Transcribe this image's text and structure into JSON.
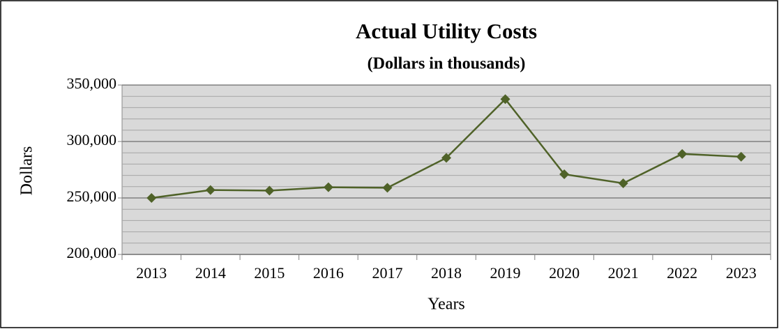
{
  "chart_data": {
    "type": "line",
    "title": "Actual Utility Costs",
    "subtitle": "(Dollars in thousands)",
    "x_label": "Years",
    "y_label": "Dollars",
    "categories": [
      "2013",
      "2014",
      "2015",
      "2016",
      "2017",
      "2018",
      "2019",
      "2020",
      "2021",
      "2022",
      "2023"
    ],
    "series": [
      {
        "name": "Actual Utility Costs",
        "color": "#4f6228",
        "values": [
          250000,
          257000,
          256500,
          259500,
          259000,
          285500,
          337500,
          271000,
          263000,
          289000,
          286500
        ]
      }
    ],
    "ylim": [
      200000,
      350000
    ],
    "yticks": [
      {
        "value": 200000,
        "label": "200,000"
      },
      {
        "value": 250000,
        "label": "250,000"
      },
      {
        "value": 300000,
        "label": "300,000"
      },
      {
        "value": 350000,
        "label": "350,000"
      }
    ],
    "minor_yticks": [
      210000,
      220000,
      230000,
      240000,
      260000,
      270000,
      280000,
      290000,
      310000,
      320000,
      330000,
      340000
    ],
    "grid": true,
    "plot_background": "#d9d9d9"
  }
}
